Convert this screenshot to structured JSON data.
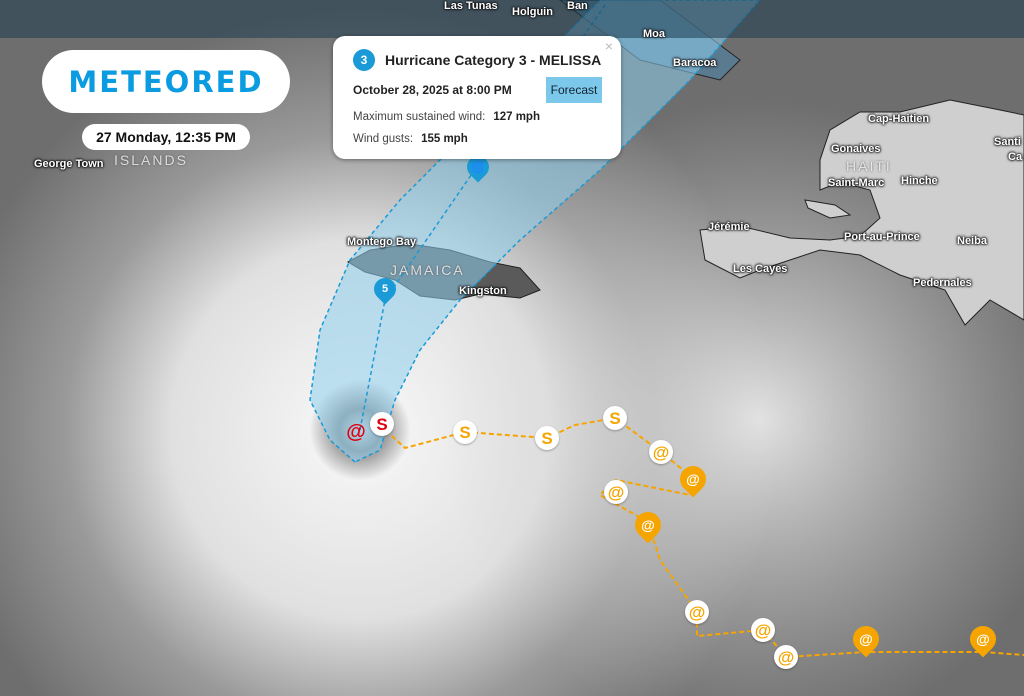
{
  "brand": {
    "logo_text": "METEORED",
    "color": "#0a9be0"
  },
  "date_label": "27 Monday, 12:35 PM",
  "popup": {
    "category_icon": "hurricane-icon",
    "category_number": "3",
    "title": "Hurricane Category 3 - MELISSA",
    "date": "October 28, 2025 at 8:00 PM",
    "badge": "Forecast",
    "max_wind_label": "Maximum sustained wind:",
    "max_wind_value": "127 mph",
    "gusts_label": "Wind gusts:",
    "gusts_value": "155 mph",
    "close": "×"
  },
  "places": [
    {
      "name": "Las Tunas"
    },
    {
      "name": "Holguin"
    },
    {
      "name": "Ban"
    },
    {
      "name": "Moa"
    },
    {
      "name": "Baracoa"
    },
    {
      "name": "George Town"
    },
    {
      "name": "Montego Bay"
    },
    {
      "name": "Kingston"
    },
    {
      "name": "Cap-Haitien"
    },
    {
      "name": "Gonaives"
    },
    {
      "name": "Saint-Marc"
    },
    {
      "name": "Hinche"
    },
    {
      "name": "Jérémie"
    },
    {
      "name": "Port-au-Prince"
    },
    {
      "name": "Les Cayes"
    },
    {
      "name": "Neiba"
    },
    {
      "name": "Pedernales"
    },
    {
      "name": "Santi"
    },
    {
      "name": "Ca"
    }
  ],
  "countries": {
    "cayman": "ISLANDS",
    "jamaica": "JAMAICA",
    "haiti": "HAITI"
  },
  "storm_markers": {
    "blue_pin_label": "5",
    "hurricane_glyph": "🌀",
    "colors": {
      "melissa_track": "#1a9ad6",
      "cone": "#8fd0ee",
      "other_track": "#f6a500",
      "current": "#e00010"
    }
  }
}
